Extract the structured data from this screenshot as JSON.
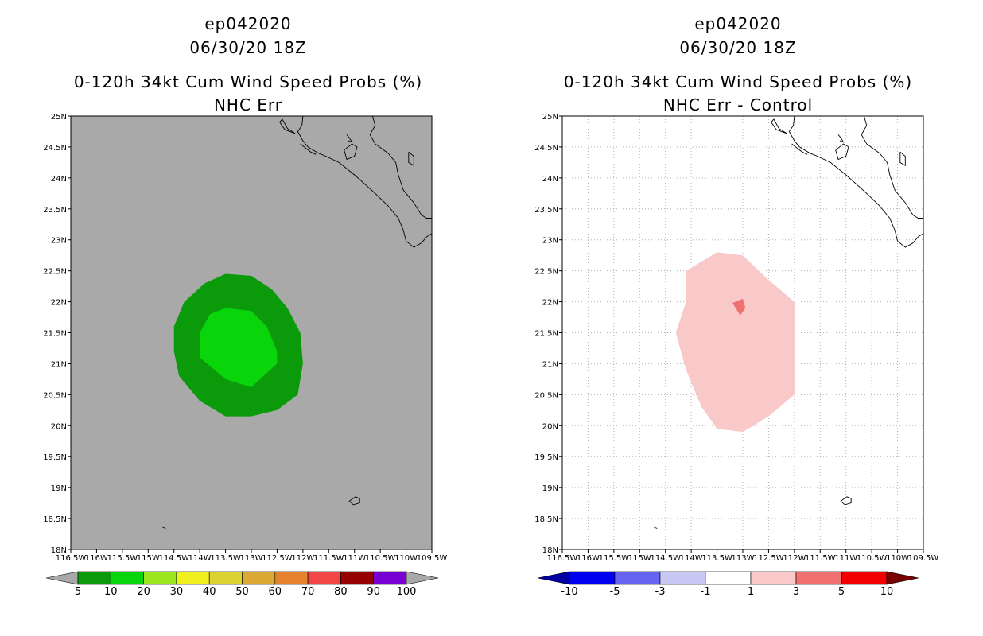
{
  "left_panel": {
    "title_line1": "ep042020",
    "title_line2": "06/30/20 18Z",
    "title_line3": "0-120h 34kt Cum Wind Speed Probs (%)",
    "title_line4": "NHC Err"
  },
  "right_panel": {
    "title_line1": "ep042020",
    "title_line2": "06/30/20 18Z",
    "title_line3": "0-120h 34kt Cum Wind Speed Probs (%)",
    "title_line4": "NHC Err - Control"
  },
  "chart_data": [
    {
      "type": "heatmap",
      "title": "0-120h 34kt Cum Wind Speed Probs (%) — NHC Err",
      "xlim": [
        -116.5,
        -109.5
      ],
      "ylim": [
        18,
        25
      ],
      "x_ticks": [
        "116.5W",
        "116W",
        "115.5W",
        "115W",
        "114.5W",
        "114W",
        "113.5W",
        "113W",
        "112.5W",
        "112W",
        "111.5W",
        "111W",
        "110.5W",
        "110W",
        "109.5W"
      ],
      "y_ticks": [
        "18N",
        "18.5N",
        "19N",
        "19.5N",
        "20N",
        "20.5N",
        "21N",
        "21.5N",
        "22N",
        "22.5N",
        "23N",
        "23.5N",
        "24N",
        "24.5N",
        "25N"
      ],
      "background_color": "#a9a9a9",
      "grid": false,
      "contours": [
        {
          "level": "5-10",
          "color": "#0a9a0a",
          "lonlat": [
            [
              -113.5,
              22.45
            ],
            [
              -113.0,
              22.42
            ],
            [
              -112.6,
              22.2
            ],
            [
              -112.3,
              21.9
            ],
            [
              -112.05,
              21.5
            ],
            [
              -112.0,
              21.0
            ],
            [
              -112.1,
              20.5
            ],
            [
              -112.5,
              20.25
            ],
            [
              -113.0,
              20.15
            ],
            [
              -113.5,
              20.15
            ],
            [
              -114.0,
              20.4
            ],
            [
              -114.4,
              20.8
            ],
            [
              -114.5,
              21.2
            ],
            [
              -114.5,
              21.6
            ],
            [
              -114.3,
              22.0
            ],
            [
              -113.9,
              22.3
            ]
          ]
        },
        {
          "level": "10-20",
          "color": "#0ad40a",
          "lonlat": [
            [
              -113.5,
              21.9
            ],
            [
              -113.0,
              21.85
            ],
            [
              -112.7,
              21.6
            ],
            [
              -112.5,
              21.2
            ],
            [
              -112.5,
              21.0
            ],
            [
              -113.0,
              20.62
            ],
            [
              -113.5,
              20.75
            ],
            [
              -114.0,
              21.1
            ],
            [
              -114.0,
              21.5
            ],
            [
              -113.8,
              21.8
            ]
          ]
        }
      ],
      "colorbar": {
        "labels": [
          "5",
          "10",
          "20",
          "30",
          "40",
          "50",
          "60",
          "70",
          "80",
          "90",
          "100"
        ],
        "colors": [
          "#0a9a0a",
          "#0ad40a",
          "#9be61e",
          "#f0f01e",
          "#dcd232",
          "#dcaa32",
          "#e6822d",
          "#f04646",
          "#960000",
          "#7800d2"
        ],
        "under_color": "#a9a9a9",
        "over_color": "#a9a9a9"
      }
    },
    {
      "type": "heatmap",
      "title": "0-120h 34kt Cum Wind Speed Probs (%) — NHC Err - Control",
      "xlim": [
        -116.5,
        -109.5
      ],
      "ylim": [
        18,
        25
      ],
      "x_ticks": [
        "116.5W",
        "116W",
        "115.5W",
        "115W",
        "114.5W",
        "114W",
        "113.5W",
        "113W",
        "112.5W",
        "112W",
        "111.5W",
        "111W",
        "110.5W",
        "110W",
        "109.5W"
      ],
      "y_ticks": [
        "18N",
        "18.5N",
        "19N",
        "19.5N",
        "20N",
        "20.5N",
        "21N",
        "21.5N",
        "22N",
        "22.5N",
        "23N",
        "23.5N",
        "24N",
        "24.5N",
        "25N"
      ],
      "background_color": "#ffffff",
      "grid": true,
      "contours": [
        {
          "level": "1-3",
          "color": "#f9c8c8",
          "lonlat": [
            [
              -113.5,
              22.8
            ],
            [
              -113.0,
              22.75
            ],
            [
              -112.5,
              22.35
            ],
            [
              -112.0,
              22.0
            ],
            [
              -112.0,
              21.5
            ],
            [
              -112.0,
              21.0
            ],
            [
              -112.0,
              20.5
            ],
            [
              -112.5,
              20.15
            ],
            [
              -113.0,
              19.9
            ],
            [
              -113.5,
              19.95
            ],
            [
              -113.8,
              20.3
            ],
            [
              -114.1,
              20.9
            ],
            [
              -114.3,
              21.5
            ],
            [
              -114.1,
              22.0
            ],
            [
              -114.1,
              22.5
            ]
          ]
        },
        {
          "level": "3-5",
          "color": "#f07070",
          "lonlat": [
            [
              -113.2,
              21.98
            ],
            [
              -113.0,
              22.05
            ],
            [
              -112.95,
              21.9
            ],
            [
              -113.05,
              21.78
            ]
          ]
        }
      ],
      "colorbar": {
        "labels": [
          "-10",
          "-5",
          "-3",
          "-1",
          "1",
          "3",
          "5",
          "10"
        ],
        "colors": [
          "#0000f0",
          "#6464f0",
          "#c8c8f5",
          "#ffffff",
          "#f9c8c8",
          "#f07070",
          "#f00000"
        ],
        "under_color": "#0000a0",
        "over_color": "#780000"
      }
    }
  ]
}
